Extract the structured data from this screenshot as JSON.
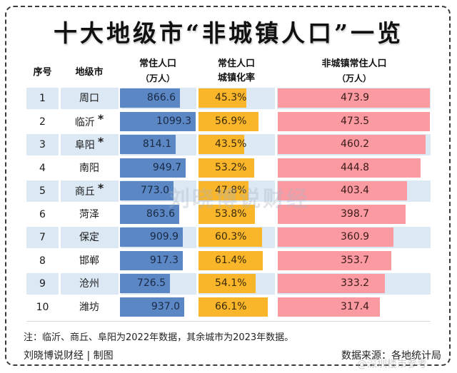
{
  "title": "十大地级市“非城镇人口”一览",
  "headers": {
    "seq": "序号",
    "city": "地级市",
    "population_line1": "常住人口",
    "population_line2": "（万人）",
    "urbanization_line1": "常住人口",
    "urbanization_line2": "城镇化率",
    "non_urban_line1": "非城镇常住人口",
    "non_urban_line2": "（万人）"
  },
  "chart_data": {
    "type": "table",
    "title": "十大地级市“非城镇人口”一览",
    "columns": [
      "序号",
      "地级市",
      "常住人口（万人）",
      "常住人口城镇化率",
      "非城镇常住人口（万人）"
    ],
    "rows": [
      {
        "seq": "1",
        "city": "周口",
        "star": "",
        "population": 866.6,
        "population_label": "866.6",
        "urbanization": 45.3,
        "urbanization_label": "45.3%",
        "non_urban": 473.9,
        "non_urban_label": "473.9"
      },
      {
        "seq": "2",
        "city": "临沂",
        "star": "*",
        "population": 1099.3,
        "population_label": "1099.3",
        "urbanization": 56.9,
        "urbanization_label": "56.9%",
        "non_urban": 473.5,
        "non_urban_label": "473.5"
      },
      {
        "seq": "3",
        "city": "阜阳",
        "star": "*",
        "population": 814.1,
        "population_label": "814.1",
        "urbanization": 43.5,
        "urbanization_label": "43.5%",
        "non_urban": 460.2,
        "non_urban_label": "460.2"
      },
      {
        "seq": "4",
        "city": "南阳",
        "star": "",
        "population": 949.7,
        "population_label": "949.7",
        "urbanization": 53.2,
        "urbanization_label": "53.2%",
        "non_urban": 444.8,
        "non_urban_label": "444.8"
      },
      {
        "seq": "5",
        "city": "商丘",
        "star": "*",
        "population": 773.0,
        "population_label": "773.0",
        "urbanization": 47.8,
        "urbanization_label": "47.8%",
        "non_urban": 403.4,
        "non_urban_label": "403.4"
      },
      {
        "seq": "6",
        "city": "菏泽",
        "star": "",
        "population": 863.6,
        "population_label": "863.6",
        "urbanization": 53.8,
        "urbanization_label": "53.8%",
        "non_urban": 398.7,
        "non_urban_label": "398.7"
      },
      {
        "seq": "7",
        "city": "保定",
        "star": "",
        "population": 909.9,
        "population_label": "909.9",
        "urbanization": 60.3,
        "urbanization_label": "60.3%",
        "non_urban": 360.9,
        "non_urban_label": "360.9"
      },
      {
        "seq": "8",
        "city": "邯郸",
        "star": "",
        "population": 917.3,
        "population_label": "917.3",
        "urbanization": 61.4,
        "urbanization_label": "61.4%",
        "non_urban": 353.7,
        "non_urban_label": "353.7"
      },
      {
        "seq": "9",
        "city": "沧州",
        "star": "",
        "population": 726.5,
        "population_label": "726.5",
        "urbanization": 54.1,
        "urbanization_label": "54.1%",
        "non_urban": 333.2,
        "non_urban_label": "333.2"
      },
      {
        "seq": "10",
        "city": "潍坊",
        "star": "",
        "population": 937.0,
        "population_label": "937.0",
        "urbanization": 66.1,
        "urbanization_label": "66.1%",
        "non_urban": 317.4,
        "non_urban_label": "317.4"
      }
    ],
    "scales": {
      "population_max": 1099.3,
      "urbanization_max": 72,
      "non_urban_max": 473.9
    }
  },
  "footer": {
    "note": "注：临沂、商丘、阜阳为2022年数据，其余城市为2023年数据。",
    "credit": "刘晓博说财经 | 制图",
    "source": "数据来源：各地统计局"
  },
  "watermarks": {
    "center": "刘晓博说财经",
    "corner": "@深圳楼市参考"
  },
  "colors": {
    "population_bar": "#5b87c5",
    "urbanization_bar": "#f9b62a",
    "non_urban_bar": "#fb9aa0",
    "row_stripe": "#dce9f5"
  }
}
